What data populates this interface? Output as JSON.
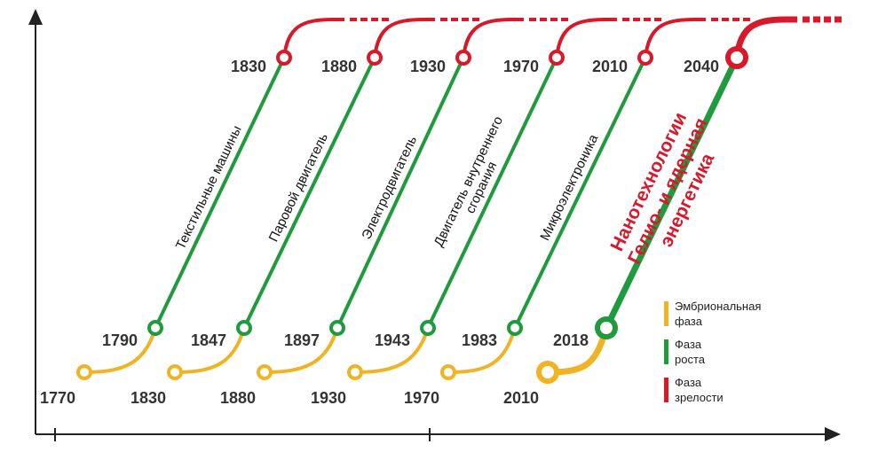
{
  "waves": [
    {
      "label": [
        "Текстильные машины"
      ],
      "years": [
        "1770",
        "1790",
        "1830"
      ]
    },
    {
      "label": [
        "Паровой двигатель"
      ],
      "years": [
        "1830",
        "1847",
        "1880"
      ]
    },
    {
      "label": [
        "Электродвигатель"
      ],
      "years": [
        "1880",
        "1897",
        "1930"
      ]
    },
    {
      "label": [
        "Двигатель внутреннего",
        "сгорания"
      ],
      "years": [
        "1930",
        "1943",
        "1970"
      ]
    },
    {
      "label": [
        "Микроэлектроника"
      ],
      "years": [
        "1970",
        "1983",
        "2010"
      ]
    },
    {
      "label": [
        "Нанотехнологии",
        "Гелио- и ядерная",
        "энергетика"
      ],
      "years": [
        "2010",
        "2018",
        "2040"
      ]
    }
  ],
  "legend": [
    [
      "Эмбриональная",
      "фаза"
    ],
    [
      "Фаза",
      "роста"
    ],
    [
      "Фаза",
      "зрелости"
    ]
  ]
}
